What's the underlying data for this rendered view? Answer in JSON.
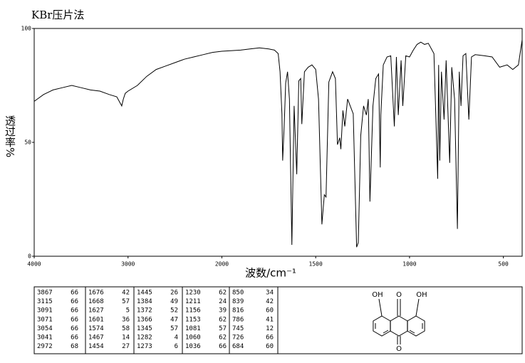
{
  "chart_data": {
    "type": "line",
    "title": "KBr压片法",
    "xlabel": "波数/cm⁻¹",
    "ylabel": "透过率%",
    "xlim": [
      4000,
      400
    ],
    "xticks": [
      4000,
      3000,
      2000,
      1500,
      1000,
      500
    ],
    "x_scale_break": 2000,
    "x_scale_factor": 2,
    "ylim": [
      0,
      100
    ],
    "yticks": [
      0,
      50,
      100
    ],
    "color": "#000000",
    "x": [
      4000,
      3900,
      3800,
      3700,
      3600,
      3500,
      3400,
      3300,
      3200,
      3120,
      3067,
      3050,
      3030,
      3000,
      2900,
      2800,
      2700,
      2600,
      2500,
      2400,
      2300,
      2200,
      2100,
      2000,
      1900,
      1850,
      1800,
      1750,
      1720,
      1700,
      1690,
      1680,
      1676,
      1668,
      1660,
      1650,
      1640,
      1627,
      1615,
      1601,
      1590,
      1580,
      1574,
      1560,
      1540,
      1520,
      1500,
      1485,
      1467,
      1454,
      1445,
      1430,
      1410,
      1395,
      1384,
      1372,
      1366,
      1355,
      1345,
      1330,
      1300,
      1282,
      1273,
      1260,
      1245,
      1230,
      1220,
      1211,
      1195,
      1180,
      1165,
      1156,
      1153,
      1140,
      1120,
      1100,
      1081,
      1070,
      1060,
      1045,
      1036,
      1020,
      1000,
      980,
      960,
      940,
      920,
      900,
      870,
      850,
      845,
      839,
      830,
      816,
      805,
      786,
      775,
      760,
      745,
      735,
      726,
      715,
      700,
      684,
      670,
      650,
      600,
      560,
      520,
      480,
      450,
      420,
      400
    ],
    "values": [
      68,
      71,
      73,
      74,
      75,
      74,
      73,
      72.5,
      71,
      70,
      66,
      69,
      71.5,
      72.5,
      75,
      79,
      82,
      83.5,
      85,
      86.5,
      87.5,
      88.5,
      89.5,
      90,
      90.5,
      91,
      91.5,
      91,
      90.5,
      89,
      81,
      62.5,
      42,
      57,
      76,
      81,
      69,
      5,
      66,
      36,
      77,
      78,
      58,
      81,
      83,
      84,
      82,
      69,
      14,
      27,
      26,
      76.5,
      81,
      78,
      49,
      52,
      47,
      64,
      57,
      69,
      62.5,
      4,
      6,
      53,
      66,
      62,
      69,
      24,
      66,
      78,
      80,
      39,
      62,
      84,
      87.5,
      88,
      57,
      87.5,
      62,
      86,
      66,
      88,
      87.5,
      90.5,
      93,
      94,
      93,
      93.5,
      89,
      34,
      84,
      42,
      81,
      60,
      86,
      41,
      83,
      69,
      12,
      81,
      66,
      88,
      89,
      60,
      87.5,
      88.5,
      88,
      87.5,
      83,
      84,
      82,
      84,
      95
    ]
  },
  "peak_table": [
    [
      [
        3867,
        66
      ],
      [
        3115,
        66
      ],
      [
        3091,
        66
      ],
      [
        3071,
        66
      ],
      [
        3054,
        66
      ],
      [
        3041,
        66
      ],
      [
        2972,
        68
      ]
    ],
    [
      [
        1676,
        42
      ],
      [
        1668,
        57
      ],
      [
        1627,
        5
      ],
      [
        1601,
        36
      ],
      [
        1574,
        58
      ],
      [
        1467,
        14
      ],
      [
        1454,
        27
      ]
    ],
    [
      [
        1445,
        26
      ],
      [
        1384,
        49
      ],
      [
        1372,
        52
      ],
      [
        1366,
        47
      ],
      [
        1345,
        57
      ],
      [
        1282,
        4
      ],
      [
        1273,
        6
      ]
    ],
    [
      [
        1230,
        62
      ],
      [
        1211,
        24
      ],
      [
        1156,
        39
      ],
      [
        1153,
        62
      ],
      [
        1081,
        57
      ],
      [
        1060,
        62
      ],
      [
        1036,
        66
      ]
    ],
    [
      [
        850,
        34
      ],
      [
        839,
        42
      ],
      [
        816,
        60
      ],
      [
        786,
        41
      ],
      [
        745,
        12
      ],
      [
        726,
        66
      ],
      [
        684,
        60
      ]
    ]
  ],
  "structure": {
    "labels": [
      "OH",
      "O",
      "OH",
      "O"
    ]
  }
}
